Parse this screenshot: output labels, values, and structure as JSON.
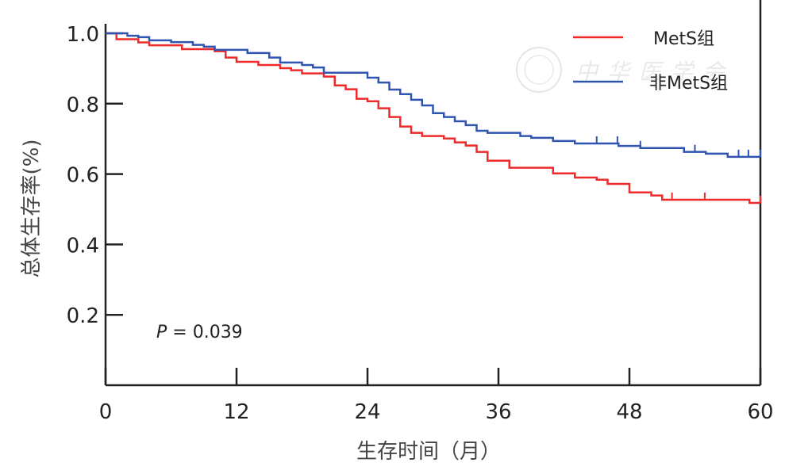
{
  "chart_data": {
    "type": "line",
    "subtype": "kaplan-meier",
    "title": "",
    "xlabel": "生存时间（月）",
    "ylabel": "总体生存率(%)",
    "xlim": [
      0,
      60
    ],
    "ylim": [
      0,
      1.0
    ],
    "xticks": [
      "0",
      "12",
      "24",
      "36",
      "48",
      "60"
    ],
    "xtick_values": [
      0,
      12,
      24,
      36,
      48,
      60
    ],
    "yticks": [
      "0.2",
      "0.4",
      "0.6",
      "0.8",
      "1.0"
    ],
    "ytick_values": [
      0.2,
      0.4,
      0.6,
      0.8,
      1.0
    ],
    "grid": false,
    "legend_position": "top-right",
    "annotation": {
      "label": "P",
      "text": " = 0.039"
    },
    "watermark": "中华医学会",
    "series": [
      {
        "name": "MetS组",
        "color": "#ee2a2a",
        "steps": [
          [
            0,
            1
          ],
          [
            1,
            0.983
          ],
          [
            3,
            0.974
          ],
          [
            4,
            0.966
          ],
          [
            7,
            0.955
          ],
          [
            10,
            0.949
          ],
          [
            11,
            0.931
          ],
          [
            12,
            0.919
          ],
          [
            14,
            0.91
          ],
          [
            16,
            0.901
          ],
          [
            17,
            0.895
          ],
          [
            18,
            0.886
          ],
          [
            20,
            0.877
          ],
          [
            21,
            0.852
          ],
          [
            22,
            0.841
          ],
          [
            23,
            0.814
          ],
          [
            24,
            0.807
          ],
          [
            25,
            0.787
          ],
          [
            26,
            0.762
          ],
          [
            27,
            0.735
          ],
          [
            28,
            0.717
          ],
          [
            29,
            0.708
          ],
          [
            31,
            0.701
          ],
          [
            32,
            0.69
          ],
          [
            33,
            0.681
          ],
          [
            34,
            0.663
          ],
          [
            35,
            0.638
          ],
          [
            37,
            0.618
          ],
          [
            41,
            0.602
          ],
          [
            43,
            0.59
          ],
          [
            45,
            0.584
          ],
          [
            46,
            0.572
          ],
          [
            48,
            0.548
          ],
          [
            50,
            0.539
          ],
          [
            51,
            0.527
          ],
          [
            59,
            0.518
          ]
        ],
        "censored": [
          51.9,
          54.9,
          60
        ]
      },
      {
        "name": "非MetS组",
        "color": "#2f55b0",
        "steps": [
          [
            0,
            1
          ],
          [
            2,
            0.993
          ],
          [
            3,
            0.989
          ],
          [
            4,
            0.98
          ],
          [
            6,
            0.975
          ],
          [
            8,
            0.967
          ],
          [
            9,
            0.962
          ],
          [
            10,
            0.953
          ],
          [
            13,
            0.944
          ],
          [
            15,
            0.931
          ],
          [
            16,
            0.917
          ],
          [
            18,
            0.91
          ],
          [
            19,
            0.903
          ],
          [
            20,
            0.888
          ],
          [
            24,
            0.874
          ],
          [
            25,
            0.86
          ],
          [
            26,
            0.84
          ],
          [
            27,
            0.827
          ],
          [
            28,
            0.811
          ],
          [
            29,
            0.795
          ],
          [
            30,
            0.773
          ],
          [
            31,
            0.762
          ],
          [
            32,
            0.75
          ],
          [
            33,
            0.739
          ],
          [
            34,
            0.723
          ],
          [
            35,
            0.717
          ],
          [
            38,
            0.708
          ],
          [
            39,
            0.703
          ],
          [
            41,
            0.694
          ],
          [
            43,
            0.687
          ],
          [
            47,
            0.68
          ],
          [
            49,
            0.674
          ],
          [
            53,
            0.663
          ],
          [
            55,
            0.658
          ],
          [
            57,
            0.649
          ]
        ],
        "censored": [
          45,
          46.9,
          49,
          54,
          58,
          58.9,
          60
        ]
      }
    ]
  }
}
